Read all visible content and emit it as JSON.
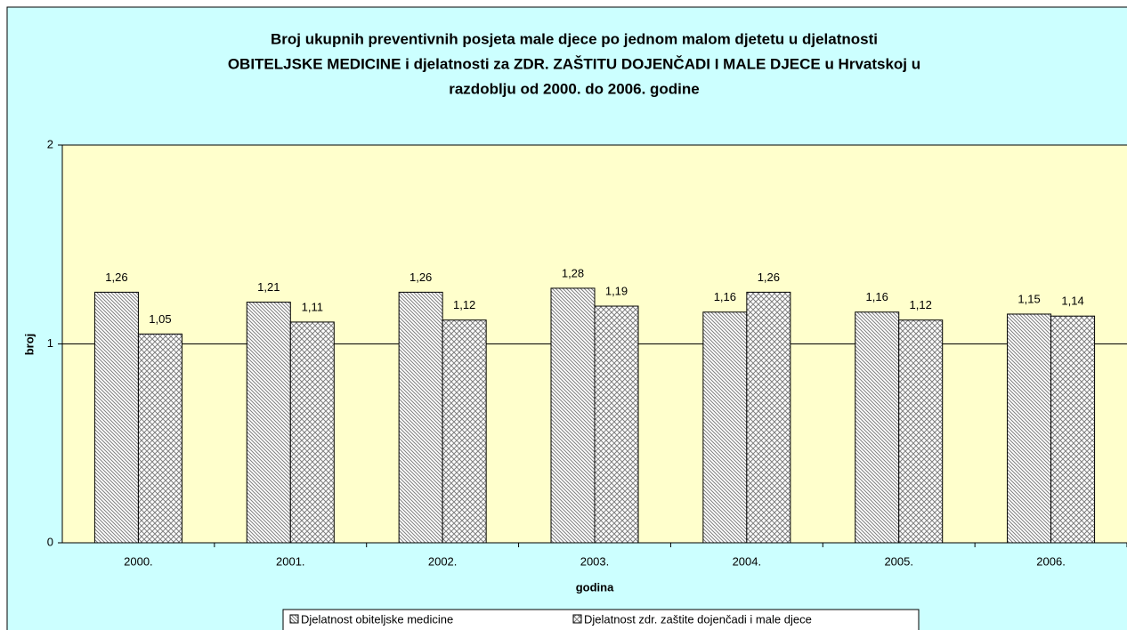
{
  "chart_data": {
    "type": "bar",
    "title": [
      "Broj ukupnih preventivnih posjeta male djece po jednom malom djetetu u djelatnosti",
      "OBITELJSKE MEDICINE i djelatnosti za ZDR. ZAŠTITU DOJENČADI I MALE DJECE u Hrvatskoj u",
      "razdoblju od 2000. do 2006. godine"
    ],
    "xlabel": "godina",
    "ylabel": "broj",
    "categories": [
      "2000.",
      "2001.",
      "2002.",
      "2003.",
      "2004.",
      "2005.",
      "2006."
    ],
    "series": [
      {
        "name": "Djelatnost obiteljske medicine",
        "color": "#808080",
        "pattern": "diagonal",
        "values": [
          1.26,
          1.21,
          1.26,
          1.28,
          1.16,
          1.16,
          1.15
        ],
        "value_labels": [
          "1,26",
          "1,21",
          "1,26",
          "1,28",
          "1,16",
          "1,16",
          "1,15"
        ]
      },
      {
        "name": "Djelatnost zdr. zaštite dojenčadi i male djece",
        "color": "#808080",
        "pattern": "cross",
        "values": [
          1.05,
          1.11,
          1.12,
          1.19,
          1.26,
          1.12,
          1.14
        ],
        "value_labels": [
          "1,05",
          "1,11",
          "1,12",
          "1,19",
          "1,26",
          "1,12",
          "1,14"
        ]
      }
    ],
    "ylim": [
      0,
      2
    ],
    "yticks": [
      0,
      1,
      2
    ],
    "grid": true,
    "legend": "bottom"
  }
}
